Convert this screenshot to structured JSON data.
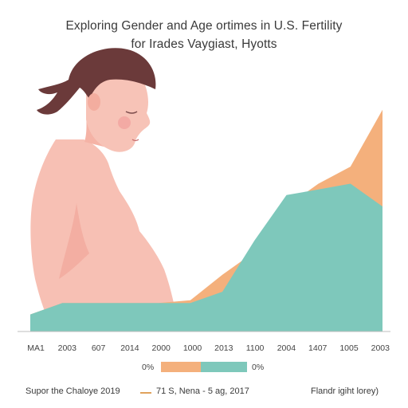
{
  "title_line1": "Exploring Gender and Age ortimes in U.S. Fertility",
  "title_line2": "for Irades Vaygiast, Hyotts",
  "chart_data": {
    "type": "area",
    "title": "Exploring Gender and Age ortimes in U.S. Fertility for Irades Vaygiast, Hyotts",
    "categories": [
      "MA1",
      "2003",
      "607",
      "2014",
      "2000",
      "1000",
      "2013",
      "1100",
      "2004",
      "1407",
      "1005",
      "2003"
    ],
    "series": [
      {
        "color": "#7ec8bb",
        "values": [
          3,
          5,
          5,
          5,
          5,
          5,
          7,
          16,
          24,
          25,
          26,
          22
        ]
      },
      {
        "color": "#f4b07c",
        "values": [
          3,
          5,
          5,
          5,
          5,
          5.5,
          10,
          14,
          22,
          26,
          29,
          39
        ]
      }
    ],
    "ylim": [
      0,
      45
    ],
    "grid": false,
    "legend": {
      "left_label": "0%",
      "right_label": "0%",
      "colors": [
        "#f4b07c",
        "#7ec8bb"
      ]
    }
  },
  "footer": {
    "left": "Supor the Chaloye 2019",
    "middle": "71 S, Nena - 5 ag, 2017",
    "right": "Flandr igiht lorey)"
  },
  "illustration": {
    "skin_color": "#f7c0b4",
    "hair_color": "#6b3a3a"
  }
}
